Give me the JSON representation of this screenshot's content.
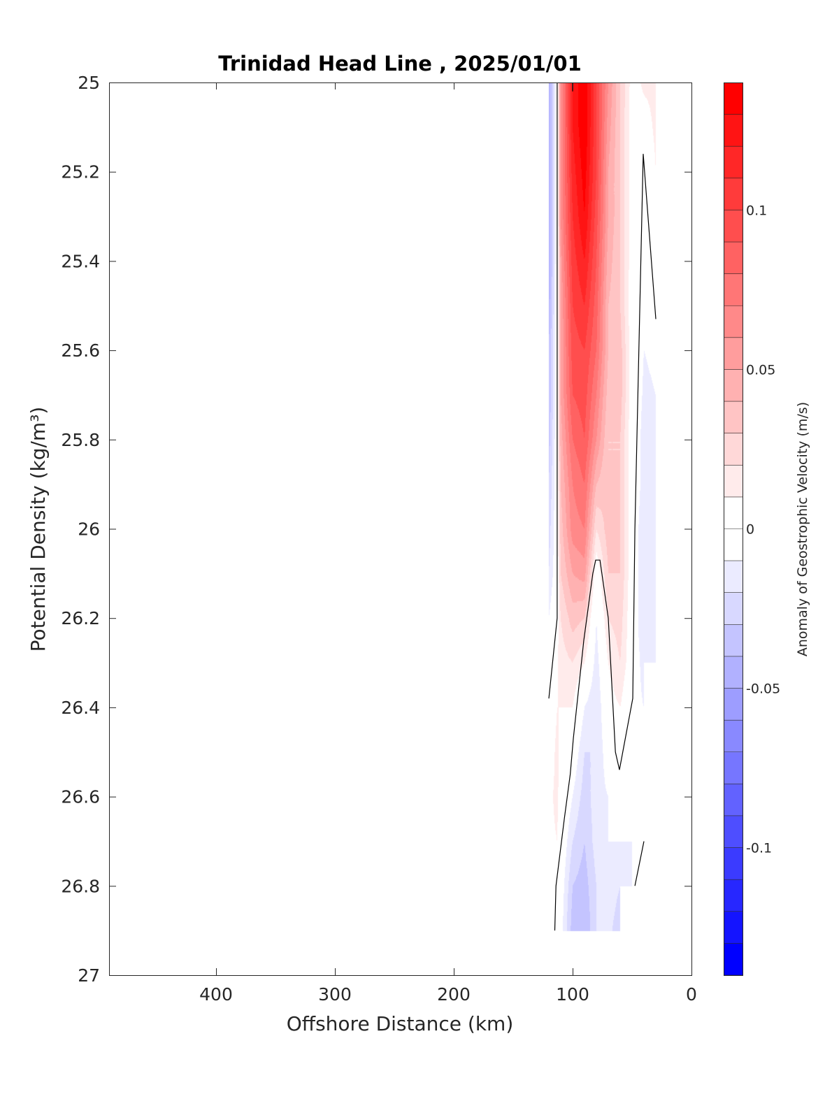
{
  "chart_data": {
    "type": "heatmap",
    "subtype": "filled-contour",
    "title": "Trinidad Head Line , 2025/01/01",
    "xlabel": "Offshore Distance (km)",
    "ylabel": "Potential Density (kg/m³)",
    "xlim": [
      0,
      490
    ],
    "x_reversed": true,
    "ylim": [
      25,
      27
    ],
    "y_reversed": true,
    "xticks": [
      400,
      300,
      200,
      100,
      0
    ],
    "xtick_labels": [
      "400",
      "300",
      "200",
      "100",
      "0"
    ],
    "yticks": [
      25,
      25.2,
      25.4,
      25.6,
      25.8,
      26,
      26.2,
      26.4,
      26.6,
      26.8,
      27
    ],
    "ytick_labels": [
      "25",
      "25.2",
      "25.4",
      "25.6",
      "25.8",
      "26",
      "26.2",
      "26.4",
      "26.6",
      "26.8",
      "27"
    ],
    "grid": false,
    "colorbar": {
      "label": "Anomaly of Geostrophic Velocity (m/s)",
      "clim": [
        -0.14,
        0.14
      ],
      "level_step": 0.01,
      "ticks": [
        0.1,
        0.05,
        0,
        -0.05,
        -0.1
      ],
      "tick_labels": [
        "0.1",
        "0.05",
        "0",
        "-0.05",
        "-0.1"
      ],
      "positive_color": "#ff0000",
      "negative_color": "#0000ff",
      "zero_color": "#ffffff"
    },
    "density_levels": [
      25.0,
      25.1,
      25.2,
      25.3,
      25.4,
      25.5,
      25.6,
      25.7,
      25.8,
      25.9,
      26.0,
      26.1,
      26.2,
      26.3,
      26.4,
      26.5,
      26.6,
      26.7,
      26.8,
      26.9
    ],
    "columns": [
      {
        "x": 120,
        "values": [
          -0.05,
          -0.05,
          -0.05,
          -0.05,
          -0.05,
          -0.045,
          -0.04,
          -0.04,
          -0.035,
          -0.03,
          -0.025,
          -0.02,
          -0.01,
          -0.005,
          0.003,
          0.005,
          0.008,
          0.008,
          0.008,
          0.005
        ]
      },
      {
        "x": 113,
        "values": [
          0,
          0,
          0,
          0,
          0,
          0,
          0,
          0,
          0,
          0,
          0,
          0,
          0.005,
          0.008,
          0.01,
          0.012,
          0.012,
          0.01,
          0.005,
          0
        ]
      },
      {
        "x": 110,
        "values": [
          0.06,
          0.06,
          0.06,
          0.06,
          0.055,
          0.05,
          0.05,
          0.05,
          0.045,
          0.04,
          0.035,
          0.03,
          0.02,
          0.015,
          0.01,
          0.008,
          0.005,
          0.002,
          -0.002,
          -0.005
        ]
      },
      {
        "x": 100,
        "values": [
          0.12,
          0.12,
          0.115,
          0.11,
          0.105,
          0.1,
          0.095,
          0.09,
          0.08,
          0.07,
          0.065,
          0.05,
          0.035,
          0.02,
          0.01,
          0.0,
          -0.01,
          -0.02,
          -0.03,
          -0.035
        ]
      },
      {
        "x": 90,
        "values": [
          0.14,
          0.14,
          0.135,
          0.13,
          0.12,
          0.11,
          0.1,
          0.095,
          0.09,
          0.08,
          0.07,
          0.055,
          0.03,
          0.01,
          -0.01,
          -0.02,
          -0.025,
          -0.03,
          -0.035,
          -0.04
        ]
      },
      {
        "x": 80,
        "values": [
          0.1,
          0.1,
          0.1,
          0.095,
          0.09,
          0.085,
          0.08,
          0.07,
          0.06,
          0.04,
          0.02,
          0.0,
          -0.01,
          -0.015,
          -0.02,
          -0.02,
          -0.015,
          -0.015,
          -0.02,
          -0.02
        ]
      },
      {
        "x": 70,
        "values": [
          0.06,
          0.055,
          0.05,
          0.05,
          0.045,
          0.04,
          0.04,
          0.035,
          0.03,
          0.03,
          0.035,
          0.03,
          0.02,
          0.01,
          0.005,
          -0.002,
          -0.01,
          -0.01,
          -0.01,
          -0.015
        ]
      },
      {
        "x": 60,
        "values": [
          0.03,
          0.03,
          0.03,
          0.03,
          0.03,
          0.03,
          0.035,
          0.035,
          0.03,
          0.03,
          0.03,
          0.03,
          0.025,
          0.02,
          0.01,
          0.0,
          -0.005,
          -0.01,
          -0.02,
          -0.03
        ]
      },
      {
        "x": 50,
        "values": [
          0.005,
          0.003,
          0.003,
          0.003,
          0.003,
          0.002,
          0.002,
          0.002,
          0.002,
          0.002,
          0.002,
          0.001,
          0.0,
          0.0,
          -0.005,
          -0.008,
          -0.01,
          -0.01,
          -0.01,
          null
        ]
      },
      {
        "x": 40,
        "values": [
          0.012,
          0.005,
          -0.002,
          -0.004,
          -0.006,
          -0.008,
          -0.01,
          -0.012,
          -0.015,
          -0.015,
          -0.02,
          -0.02,
          -0.02,
          -0.015,
          -0.01,
          -0.01,
          -0.005,
          0.003,
          0.005,
          null
        ]
      },
      {
        "x": 30,
        "values": [
          0.012,
          0.012,
          0.01,
          0.005,
          0.0,
          -0.005,
          -0.008,
          -0.01,
          -0.012,
          -0.015,
          -0.015,
          -0.015,
          -0.015,
          -0.012,
          null,
          null,
          null,
          null,
          null,
          null
        ]
      }
    ],
    "zero_contours": [
      [
        [
          100,
          25.0
        ],
        [
          100,
          25.02
        ]
      ],
      [
        [
          113,
          25.0
        ],
        [
          113,
          26.2
        ],
        [
          120,
          26.38
        ]
      ],
      [
        [
          30,
          25.53
        ],
        [
          40.6,
          25.16
        ],
        [
          47.6,
          26.0
        ],
        [
          49.4,
          26.38
        ],
        [
          60.6,
          26.54
        ],
        [
          64,
          26.5
        ],
        [
          70,
          26.2
        ],
        [
          77,
          26.07
        ],
        [
          80.6,
          26.07
        ],
        [
          83,
          26.1
        ],
        [
          90.6,
          26.25
        ],
        [
          99.4,
          26.47
        ],
        [
          102,
          26.55
        ],
        [
          107,
          26.65
        ],
        [
          114,
          26.8
        ],
        [
          115,
          26.9
        ]
      ],
      [
        [
          47.6,
          26.8
        ],
        [
          40,
          26.7
        ]
      ]
    ]
  }
}
